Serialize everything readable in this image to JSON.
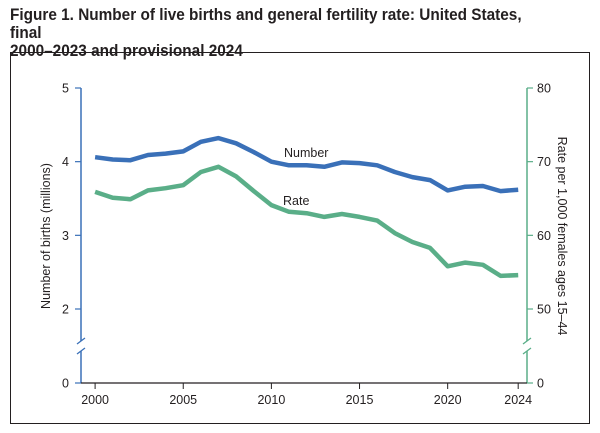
{
  "figure": {
    "title_line1": "Figure 1. Number of live births and general fertility rate: United States, final",
    "title_line2": "2000–2023 and provisional 2024"
  },
  "chart_data": {
    "type": "line",
    "x": [
      2000,
      2001,
      2002,
      2003,
      2004,
      2005,
      2006,
      2007,
      2008,
      2009,
      2010,
      2011,
      2012,
      2013,
      2014,
      2015,
      2016,
      2017,
      2018,
      2019,
      2020,
      2021,
      2022,
      2023,
      2024
    ],
    "xticks": [
      "2000",
      "2005",
      "2010",
      "2015",
      "2020",
      "2024"
    ],
    "xtick_values": [
      2000,
      2005,
      2010,
      2015,
      2020,
      2024
    ],
    "xlim": [
      1999.2,
      2024.5
    ],
    "left_axis": {
      "label": "Number of births (millions)",
      "ticks": [
        "0",
        "2",
        "3",
        "4",
        "5"
      ],
      "tick_values": [
        0,
        2,
        3,
        4,
        5
      ],
      "axis_break": true
    },
    "right_axis": {
      "label": "Rate per 1,000 females ages 15–44",
      "ticks": [
        "0",
        "50",
        "60",
        "70",
        "80"
      ],
      "tick_values": [
        0,
        50,
        60,
        70,
        80
      ],
      "axis_break": true
    },
    "grid": false,
    "series": [
      {
        "name": "Number",
        "axis": "left",
        "color": "#3a70b8",
        "values": [
          4.06,
          4.03,
          4.02,
          4.09,
          4.11,
          4.14,
          4.27,
          4.32,
          4.25,
          4.13,
          4.0,
          3.95,
          3.95,
          3.93,
          3.99,
          3.98,
          3.95,
          3.86,
          3.79,
          3.75,
          3.61,
          3.66,
          3.67,
          3.6,
          3.62
        ]
      },
      {
        "name": "Rate",
        "axis": "right",
        "color": "#5aae88",
        "values": [
          65.9,
          65.1,
          64.9,
          66.1,
          66.4,
          66.8,
          68.6,
          69.3,
          68.0,
          66.0,
          64.1,
          63.2,
          63.0,
          62.5,
          62.9,
          62.5,
          62.0,
          60.3,
          59.1,
          58.3,
          55.8,
          56.3,
          56.0,
          54.5,
          54.6
        ]
      }
    ]
  }
}
